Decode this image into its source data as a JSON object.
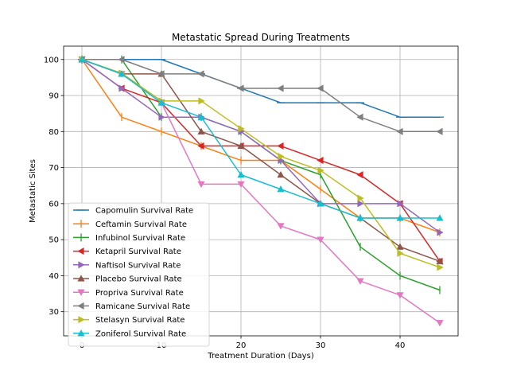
{
  "chart_data": {
    "type": "line",
    "title": "Metastatic Spread During Treatments",
    "xlabel": "Treatment Duration (Days)",
    "ylabel": "Metastatic Sites",
    "xlim": [
      -2.3,
      47.3
    ],
    "ylim": [
      23.3,
      103.7
    ],
    "xticks": [
      0,
      10,
      20,
      30,
      40
    ],
    "yticks": [
      30,
      40,
      50,
      60,
      70,
      80,
      90,
      100
    ],
    "grid": true,
    "legend_position": "lower-left",
    "x": [
      0,
      5,
      10,
      15,
      20,
      25,
      30,
      35,
      40,
      45
    ],
    "series": [
      {
        "name": "Capomulin Survival Rate",
        "color": "#1f77b4",
        "marker": "hline",
        "values": [
          100,
          100,
          100,
          96,
          92,
          88,
          88,
          88,
          84,
          84
        ]
      },
      {
        "name": "Ceftamin Survival Rate",
        "color": "#ff7f0e",
        "marker": "vline",
        "values": [
          100,
          84,
          80,
          76,
          72,
          72,
          64,
          56,
          56,
          52
        ]
      },
      {
        "name": "Infubinol Survival Rate",
        "color": "#2ca02c",
        "marker": "vline",
        "values": [
          100,
          100,
          84,
          84,
          80,
          72,
          68,
          48,
          40,
          36
        ]
      },
      {
        "name": "Ketapril Survival Rate",
        "color": "#d62728",
        "marker": "tri-left",
        "values": [
          100,
          92,
          88,
          76,
          76,
          76,
          72,
          68,
          60,
          44
        ]
      },
      {
        "name": "Naftisol Survival Rate",
        "color": "#9467bd",
        "marker": "tri-right",
        "values": [
          100,
          92,
          84,
          84,
          80,
          72,
          60,
          60,
          60,
          52
        ]
      },
      {
        "name": "Placebo Survival Rate",
        "color": "#8c564b",
        "marker": "tri-up",
        "values": [
          100,
          96,
          96,
          80,
          76,
          68,
          60,
          56,
          48,
          44
        ]
      },
      {
        "name": "Propriva Survival Rate",
        "color": "#e377c2",
        "marker": "tri-down",
        "values": [
          100,
          96,
          88,
          65.4,
          65.4,
          53.8,
          50,
          38.5,
          34.6,
          26.9
        ]
      },
      {
        "name": "Ramicane Survival Rate",
        "color": "#7f7f7f",
        "marker": "tri-left",
        "values": [
          100,
          100,
          96,
          96,
          92,
          92,
          92,
          84,
          80,
          80
        ]
      },
      {
        "name": "Stelasyn Survival Rate",
        "color": "#bcbd22",
        "marker": "tri-right",
        "values": [
          100,
          96.2,
          88.5,
          88.5,
          80.8,
          73.1,
          69.2,
          61.5,
          46.2,
          42.3
        ]
      },
      {
        "name": "Zoniferol Survival Rate",
        "color": "#17becf",
        "marker": "tri-up",
        "values": [
          100,
          96,
          88,
          84,
          68,
          64,
          60,
          56,
          56,
          56
        ]
      }
    ]
  }
}
